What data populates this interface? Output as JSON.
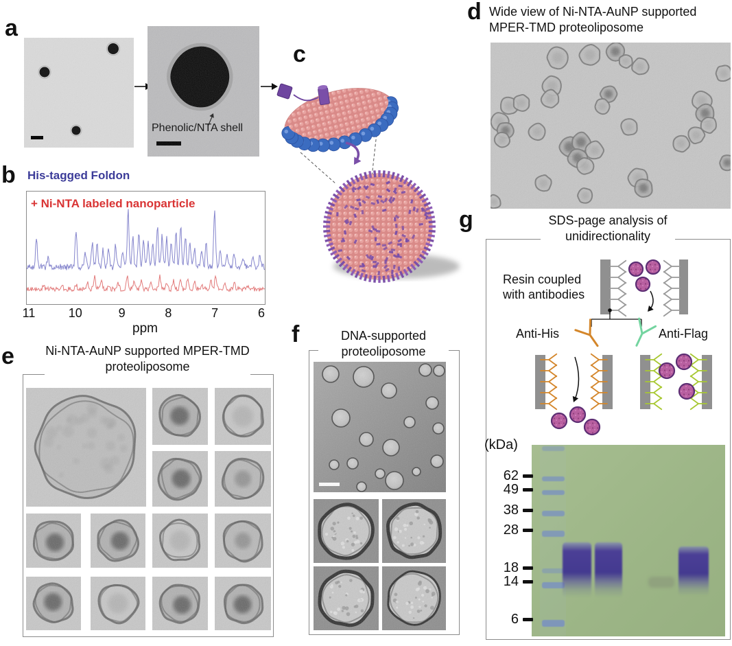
{
  "panels": {
    "a": {
      "label": "a",
      "annotation": "Phenolic/NTA shell"
    },
    "b": {
      "label": "b",
      "trace1_label": "His-tagged Foldon",
      "trace2_label": "+ Ni-NTA labeled nanoparticle",
      "xlabel": "ppm"
    },
    "c": {
      "label": "c"
    },
    "d": {
      "label": "d",
      "title": "Wide view of Ni-NTA-AuNP supported MPER-TMD proteoliposome"
    },
    "e": {
      "label": "e",
      "title": "Ni-NTA-AuNP supported MPER-TMD proteoliposome"
    },
    "f": {
      "label": "f",
      "title": "DNA-supported proteoliposome"
    },
    "g": {
      "label": "g",
      "title": "SDS-page analysis of unidirectionality",
      "resin_caption": "Resin coupled with antibodies",
      "anti_his": "Anti-His",
      "anti_flag": "Anti-Flag",
      "gel": {
        "units": "(kDa)",
        "markers": [
          "62",
          "49",
          "38",
          "28",
          "18",
          "14",
          "6"
        ]
      }
    }
  },
  "colors": {
    "trace1_text": "#3c3c99",
    "trace2_text": "#d93434",
    "trace1_line": "#8484cc",
    "trace2_line": "#e27a7a",
    "anti_his_ab": "#d4862a",
    "anti_flag_ab": "#74d4a0",
    "flag_resin_ab": "#a8c832",
    "resin_gray": "#909090",
    "liposome_fill": "#b85fa0",
    "liposome_rim": "#5c2d73",
    "gel_bg": "#a0b88a",
    "gel_band": "#4b3f96",
    "ladder_band": "#7d95bd",
    "lipid_pink": "#e09492",
    "belt_blue": "#3b6cc0",
    "protein_purple": "#7a4fa8"
  },
  "chart_data": {
    "type": "line",
    "title": "",
    "xlabel": "ppm",
    "x_ticks": [
      11,
      10,
      9,
      8,
      7,
      6
    ],
    "x_range": [
      11,
      6
    ],
    "axis_reversed": true,
    "legend_position": "inline-labels",
    "series": [
      {
        "name": "His-tagged Foldon",
        "color": "#8484cc",
        "peaks": [
          [
            10.85,
            0.5
          ],
          [
            10.6,
            0.18
          ],
          [
            10.0,
            0.68
          ],
          [
            9.8,
            0.25
          ],
          [
            9.65,
            0.45
          ],
          [
            9.55,
            0.42
          ],
          [
            9.42,
            0.3
          ],
          [
            9.3,
            0.32
          ],
          [
            9.15,
            0.38
          ],
          [
            9.0,
            0.3
          ],
          [
            8.88,
            1.0
          ],
          [
            8.78,
            0.55
          ],
          [
            8.65,
            0.6
          ],
          [
            8.55,
            0.5
          ],
          [
            8.45,
            0.42
          ],
          [
            8.35,
            0.4
          ],
          [
            8.25,
            0.72
          ],
          [
            8.15,
            0.55
          ],
          [
            8.05,
            0.5
          ],
          [
            7.95,
            0.45
          ],
          [
            7.85,
            0.6
          ],
          [
            7.75,
            0.75
          ],
          [
            7.65,
            0.55
          ],
          [
            7.55,
            0.45
          ],
          [
            7.45,
            0.35
          ],
          [
            7.3,
            0.3
          ],
          [
            7.2,
            0.42
          ],
          [
            7.02,
            1.05
          ],
          [
            6.9,
            0.3
          ],
          [
            6.75,
            0.22
          ],
          [
            6.6,
            0.25
          ],
          [
            6.4,
            0.15
          ],
          [
            6.2,
            0.18
          ],
          [
            6.05,
            0.2
          ]
        ]
      },
      {
        "name": "+ Ni-NTA labeled nanoparticle",
        "color": "#e27a7a",
        "peaks": [
          [
            10.7,
            0.08
          ],
          [
            10.3,
            0.1
          ],
          [
            10.0,
            0.12
          ],
          [
            9.75,
            0.15
          ],
          [
            9.6,
            0.3
          ],
          [
            9.45,
            0.18
          ],
          [
            9.3,
            0.12
          ],
          [
            9.1,
            0.18
          ],
          [
            8.9,
            0.32
          ],
          [
            8.75,
            0.2
          ],
          [
            8.6,
            0.18
          ],
          [
            8.4,
            0.15
          ],
          [
            8.2,
            0.33
          ],
          [
            8.05,
            0.18
          ],
          [
            7.9,
            0.2
          ],
          [
            7.75,
            0.22
          ],
          [
            7.6,
            0.26
          ],
          [
            7.45,
            0.15
          ],
          [
            7.3,
            0.14
          ],
          [
            7.1,
            0.2
          ],
          [
            7.0,
            0.3
          ],
          [
            6.8,
            0.12
          ],
          [
            6.6,
            0.15
          ],
          [
            6.3,
            0.1
          ]
        ]
      }
    ]
  }
}
